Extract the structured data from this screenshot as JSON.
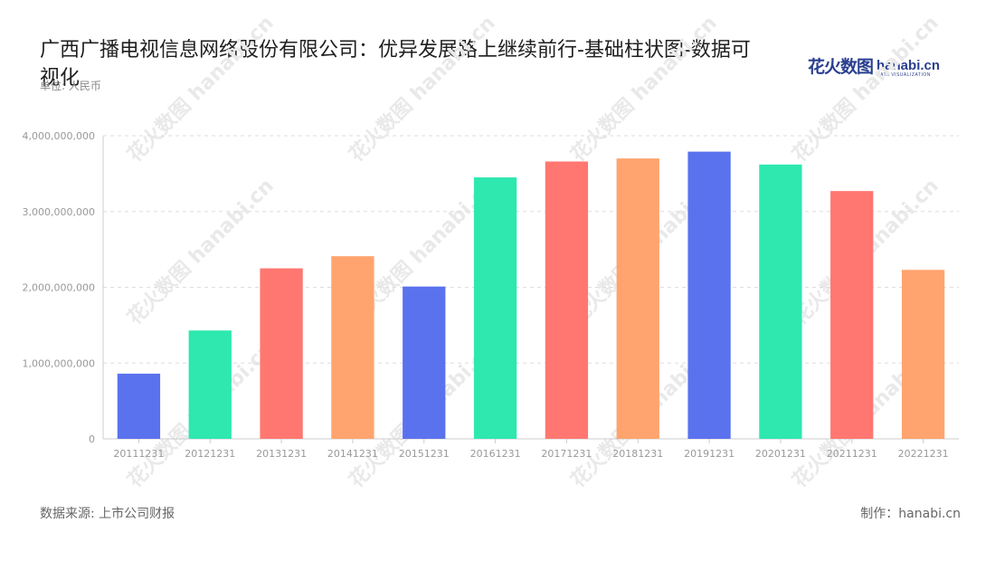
{
  "title": "广西广播电视信息网络股份有限公司：优异发展路上继续前行-基础柱状图-数据可视化",
  "unit_label": "单位: 人民币",
  "logo": {
    "cn": "花火数图",
    "en": "hanabi.cn",
    "sub": "DATA VISUALIZATION"
  },
  "watermark": "花火数图 hanabi.cn",
  "footer": {
    "source": "数据来源: 上市公司财报",
    "credit": "制作：hanabi.cn"
  },
  "colors": {
    "palette": [
      "#5b72ee",
      "#2ee8b0",
      "#ff7770",
      "#ffa46e"
    ],
    "grid": "#dddddd",
    "axis": "#cccccc"
  },
  "chart_data": {
    "type": "bar",
    "categories": [
      "20111231",
      "20121231",
      "20131231",
      "20141231",
      "20151231",
      "20161231",
      "20171231",
      "20181231",
      "20191231",
      "20201231",
      "20211231",
      "20221231"
    ],
    "values": [
      860000000,
      1430000000,
      2250000000,
      2410000000,
      2010000000,
      3450000000,
      3660000000,
      3700000000,
      3790000000,
      3620000000,
      3270000000,
      2230000000
    ],
    "ylim": [
      0,
      4000000000
    ],
    "yticks": [
      0,
      1000000000,
      2000000000,
      3000000000,
      4000000000
    ],
    "ytick_labels": [
      "0",
      "1,000,000,000",
      "2,000,000,000",
      "3,000,000,000",
      "4,000,000,000"
    ],
    "grid": true,
    "legend": false
  }
}
